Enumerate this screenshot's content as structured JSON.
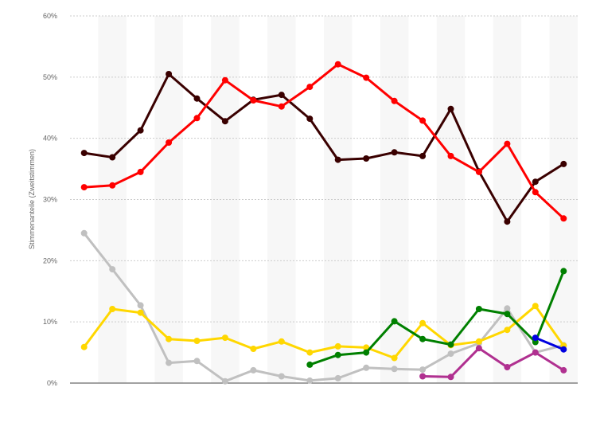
{
  "chart_data": {
    "type": "line",
    "ylabel": "Stimmenanteile (Zweitstimmen)",
    "xlabel": "",
    "ylim": [
      0,
      60
    ],
    "y_ticks": [
      "0%",
      "10%",
      "20%",
      "30%",
      "40%",
      "50%",
      "60%"
    ],
    "y_tick_values": [
      0,
      10,
      20,
      30,
      40,
      50,
      60
    ],
    "x_count": 18,
    "grid": "horizontal dotted",
    "alternating_column_bands": true,
    "series": [
      {
        "color": "#3a0000",
        "values": [
          37.6,
          36.9,
          41.3,
          50.5,
          46.5,
          42.8,
          46.3,
          47.1,
          43.2,
          36.5,
          36.7,
          37.7,
          37.1,
          44.8,
          34.6,
          26.4,
          32.9,
          35.8
        ]
      },
      {
        "color": "#ff0000",
        "values": [
          32.0,
          32.3,
          34.5,
          39.3,
          43.3,
          49.5,
          46.2,
          45.2,
          48.4,
          52.1,
          49.9,
          46.1,
          42.9,
          37.1,
          34.5,
          39.1,
          31.2,
          26.9
        ]
      },
      {
        "color": "#c0c0c0",
        "values": [
          24.5,
          18.6,
          12.7,
          3.3,
          3.6,
          0.3,
          2.1,
          1.1,
          0.4,
          0.8,
          2.5,
          2.3,
          2.2,
          4.8,
          6.5,
          12.2,
          5.0,
          6.2
        ]
      },
      {
        "color": "#ffd700",
        "values": [
          5.9,
          12.1,
          11.5,
          7.2,
          6.9,
          7.4,
          5.6,
          6.8,
          5.0,
          6.0,
          5.8,
          4.1,
          9.8,
          6.2,
          6.8,
          8.7,
          12.6,
          6.1
        ]
      },
      {
        "color": "#008000",
        "values": [
          null,
          null,
          null,
          null,
          null,
          null,
          null,
          null,
          3.0,
          4.6,
          5.0,
          10.1,
          7.2,
          6.3,
          12.1,
          11.3,
          6.7,
          18.3
        ]
      },
      {
        "color": "#b03090",
        "values": [
          null,
          null,
          null,
          null,
          null,
          null,
          null,
          null,
          null,
          null,
          null,
          null,
          1.1,
          1.0,
          5.7,
          2.6,
          5.0,
          2.1
        ]
      },
      {
        "color": "#0000e0",
        "values": [
          null,
          null,
          null,
          null,
          null,
          null,
          null,
          null,
          null,
          null,
          null,
          null,
          null,
          null,
          null,
          null,
          7.4,
          5.5
        ]
      }
    ]
  }
}
